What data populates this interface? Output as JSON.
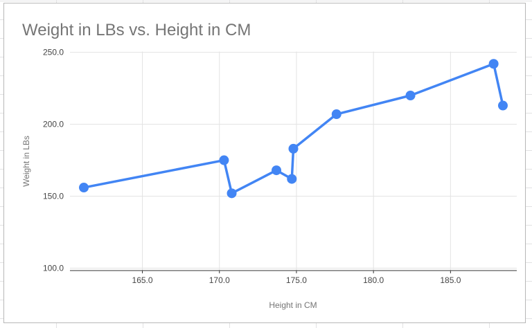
{
  "chart": {
    "title": "Weight in LBs vs. Height in CM",
    "x_axis_title": "Height in CM",
    "y_axis_title": "Weight in LBs"
  },
  "chart_data": {
    "type": "line",
    "title": "Weight in LBs vs. Height in CM",
    "xlabel": "Height in CM",
    "ylabel": "Weight in LBs",
    "legend": "none",
    "grid": true,
    "marker": "circle",
    "points": [
      {
        "x": 161.2,
        "y": 156
      },
      {
        "x": 170.3,
        "y": 175
      },
      {
        "x": 170.8,
        "y": 152
      },
      {
        "x": 173.7,
        "y": 168
      },
      {
        "x": 174.7,
        "y": 162
      },
      {
        "x": 174.8,
        "y": 183
      },
      {
        "x": 177.6,
        "y": 207
      },
      {
        "x": 182.4,
        "y": 220
      },
      {
        "x": 187.8,
        "y": 242
      },
      {
        "x": 188.4,
        "y": 213
      }
    ],
    "x_ticks": [
      165.0,
      170.0,
      175.0,
      180.0,
      185.0
    ],
    "y_ticks": [
      100.0,
      150.0,
      200.0,
      250.0
    ],
    "x_range": [
      160.3,
      189.3
    ],
    "y_range": [
      98.3,
      250.3
    ],
    "tick_decimals": 1,
    "colors": {
      "series": "#4285f4",
      "gridline": "#e3e3e3",
      "axis_line": "#333333",
      "title_text": "#757575",
      "tick_text": "#444444",
      "card_border": "#b7b7b7",
      "sheet_gridline": "#e2e2e3"
    }
  }
}
